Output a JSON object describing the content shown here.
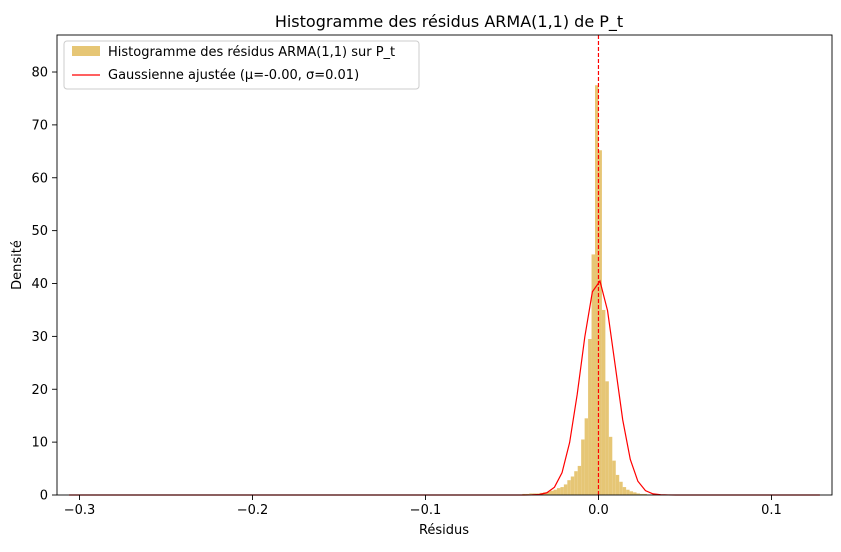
{
  "chart_data": {
    "type": "bar",
    "title": "Histogramme des résidus ARMA(1,1) de P_t",
    "xlabel": "Résidus",
    "ylabel": "Densité",
    "xlim": [
      -0.313,
      0.135
    ],
    "ylim": [
      0,
      87
    ],
    "x_ticks": [
      -0.3,
      -0.2,
      -0.1,
      0.0,
      0.1
    ],
    "x_tick_labels": [
      "−0.3",
      "−0.2",
      "−0.1",
      "0.0",
      "0.1"
    ],
    "y_ticks": [
      0,
      10,
      20,
      30,
      40,
      50,
      60,
      70,
      80
    ],
    "y_tick_labels": [
      "0",
      "10",
      "20",
      "30",
      "40",
      "50",
      "60",
      "70",
      "80"
    ],
    "grid": false,
    "legend_position": "top-left",
    "histogram": {
      "name": "Histogramme des résidus ARMA(1,1) sur P_t",
      "color": "#e6c675",
      "bin_width": 0.002,
      "bin_lefts": [
        -0.044,
        -0.042,
        -0.04,
        -0.038,
        -0.036,
        -0.034,
        -0.032,
        -0.03,
        -0.028,
        -0.026,
        -0.024,
        -0.022,
        -0.02,
        -0.018,
        -0.016,
        -0.014,
        -0.012,
        -0.01,
        -0.008,
        -0.006,
        -0.004,
        -0.002,
        0.0,
        0.002,
        0.004,
        0.006,
        0.008,
        0.01,
        0.012,
        0.014,
        0.016,
        0.018,
        0.02,
        0.022,
        0.024,
        0.026,
        0.028,
        0.03,
        0.032,
        0.034,
        0.036,
        0.038,
        0.04
      ],
      "values": [
        0.2,
        0.2,
        0.3,
        0.3,
        0.3,
        0.4,
        0.5,
        0.6,
        0.8,
        1.0,
        1.3,
        1.5,
        2.0,
        2.8,
        3.5,
        4.5,
        5.5,
        10.5,
        14.5,
        29.5,
        45.5,
        77.5,
        65.2,
        35.0,
        21.5,
        11.0,
        6.5,
        3.8,
        2.5,
        1.5,
        1.0,
        0.7,
        0.5,
        0.3,
        0.2,
        0.2,
        0.1,
        0.1,
        0.1,
        0.1,
        0.1,
        0.1,
        0.1
      ]
    },
    "gaussian": {
      "name": "Gaussienne ajustée (μ=-0.00, σ=0.01)",
      "color": "#ff0000",
      "mu": -0.0002,
      "sigma": 0.0098,
      "x_range": [
        -0.306,
        0.128
      ],
      "n_points": 100
    },
    "vline": {
      "x": 0.0,
      "color": "#ff0000",
      "style": "dashed"
    }
  }
}
